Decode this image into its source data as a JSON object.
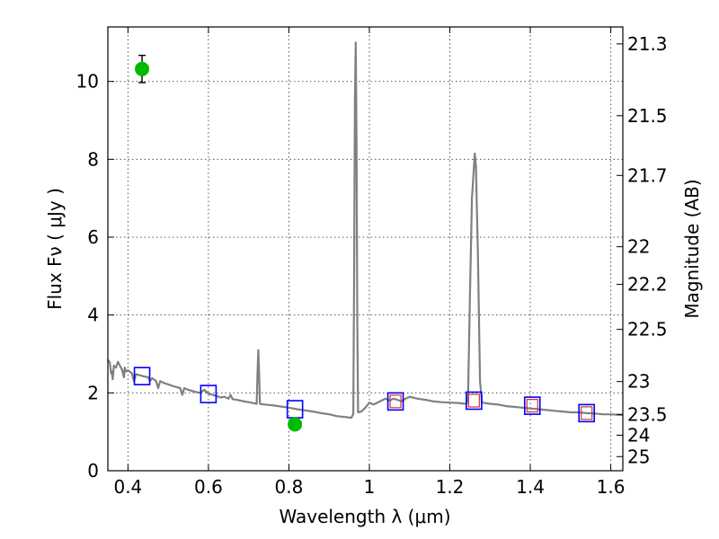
{
  "chart_data": {
    "type": "scatter",
    "xlabel": "Wavelength  λ (μm)",
    "ylabel": "Flux  Fν  ( μJy )",
    "ylabel_right": "Magnitude (AB)",
    "xlim": [
      0.35,
      1.63
    ],
    "ylim": [
      0,
      11.4
    ],
    "grid": true,
    "x_ticks": [
      {
        "value": 0.4,
        "label": "0.4"
      },
      {
        "value": 0.6,
        "label": "0.6"
      },
      {
        "value": 0.8,
        "label": "0.8"
      },
      {
        "value": 1.0,
        "label": "1"
      },
      {
        "value": 1.2,
        "label": "1.2"
      },
      {
        "value": 1.4,
        "label": "1.4"
      },
      {
        "value": 1.6,
        "label": "1.6"
      }
    ],
    "y_ticks": [
      {
        "value": 0,
        "label": "0"
      },
      {
        "value": 2,
        "label": "2"
      },
      {
        "value": 4,
        "label": "4"
      },
      {
        "value": 6,
        "label": "6"
      },
      {
        "value": 8,
        "label": "8"
      },
      {
        "value": 10,
        "label": "10"
      }
    ],
    "right_ticks": [
      {
        "mag": 21.3,
        "label": "21.3"
      },
      {
        "mag": 21.5,
        "label": "21.5"
      },
      {
        "mag": 21.7,
        "label": "21.7"
      },
      {
        "mag": 22.0,
        "label": "22"
      },
      {
        "mag": 22.2,
        "label": "22.2"
      },
      {
        "mag": 22.5,
        "label": "22.5"
      },
      {
        "mag": 23.0,
        "label": "23"
      },
      {
        "mag": 23.5,
        "label": "23.5"
      },
      {
        "mag": 24.0,
        "label": "24"
      },
      {
        "mag": 25.0,
        "label": "25"
      }
    ],
    "colors": {
      "spectrum": "#808080",
      "observed": "#00bb00",
      "model_box": "#0000ff",
      "model_box_inner": "#cc3333",
      "grid": "#555555"
    },
    "spectrum": [
      [
        0.35,
        2.85
      ],
      [
        0.355,
        2.78
      ],
      [
        0.358,
        2.5
      ],
      [
        0.36,
        2.55
      ],
      [
        0.362,
        2.35
      ],
      [
        0.365,
        2.7
      ],
      [
        0.37,
        2.65
      ],
      [
        0.375,
        2.8
      ],
      [
        0.38,
        2.7
      ],
      [
        0.385,
        2.6
      ],
      [
        0.39,
        2.4
      ],
      [
        0.392,
        2.65
      ],
      [
        0.395,
        2.55
      ],
      [
        0.4,
        2.58
      ],
      [
        0.41,
        2.5
      ],
      [
        0.415,
        2.3
      ],
      [
        0.42,
        2.48
      ],
      [
        0.43,
        2.45
      ],
      [
        0.44,
        2.42
      ],
      [
        0.45,
        2.4
      ],
      [
        0.455,
        2.3
      ],
      [
        0.46,
        2.38
      ],
      [
        0.47,
        2.3
      ],
      [
        0.475,
        2.12
      ],
      [
        0.48,
        2.3
      ],
      [
        0.49,
        2.25
      ],
      [
        0.5,
        2.22
      ],
      [
        0.51,
        2.18
      ],
      [
        0.52,
        2.15
      ],
      [
        0.53,
        2.12
      ],
      [
        0.535,
        1.95
      ],
      [
        0.54,
        2.12
      ],
      [
        0.55,
        2.08
      ],
      [
        0.56,
        2.05
      ],
      [
        0.57,
        2.02
      ],
      [
        0.58,
        2.0
      ],
      [
        0.59,
        2.08
      ],
      [
        0.6,
        1.98
      ],
      [
        0.61,
        1.95
      ],
      [
        0.62,
        1.92
      ],
      [
        0.63,
        1.88
      ],
      [
        0.64,
        1.9
      ],
      [
        0.65,
        1.85
      ],
      [
        0.655,
        1.95
      ],
      [
        0.66,
        1.84
      ],
      [
        0.67,
        1.82
      ],
      [
        0.68,
        1.8
      ],
      [
        0.69,
        1.78
      ],
      [
        0.7,
        1.76
      ],
      [
        0.71,
        1.74
      ],
      [
        0.72,
        1.72
      ],
      [
        0.722,
        2.5
      ],
      [
        0.724,
        3.1
      ],
      [
        0.726,
        2.5
      ],
      [
        0.728,
        1.72
      ],
      [
        0.74,
        1.7
      ],
      [
        0.76,
        1.68
      ],
      [
        0.78,
        1.65
      ],
      [
        0.8,
        1.62
      ],
      [
        0.82,
        1.58
      ],
      [
        0.84,
        1.55
      ],
      [
        0.86,
        1.52
      ],
      [
        0.88,
        1.48
      ],
      [
        0.9,
        1.45
      ],
      [
        0.92,
        1.4
      ],
      [
        0.94,
        1.38
      ],
      [
        0.955,
        1.36
      ],
      [
        0.96,
        1.45
      ],
      [
        0.962,
        5.0
      ],
      [
        0.964,
        9.5
      ],
      [
        0.966,
        11.0
      ],
      [
        0.968,
        8.5
      ],
      [
        0.97,
        4.0
      ],
      [
        0.972,
        1.5
      ],
      [
        0.98,
        1.52
      ],
      [
        0.99,
        1.62
      ],
      [
        1.0,
        1.75
      ],
      [
        1.01,
        1.7
      ],
      [
        1.02,
        1.75
      ],
      [
        1.03,
        1.8
      ],
      [
        1.04,
        1.85
      ],
      [
        1.05,
        1.8
      ],
      [
        1.06,
        1.85
      ],
      [
        1.07,
        1.82
      ],
      [
        1.08,
        1.78
      ],
      [
        1.09,
        1.85
      ],
      [
        1.1,
        1.9
      ],
      [
        1.12,
        1.85
      ],
      [
        1.14,
        1.82
      ],
      [
        1.16,
        1.78
      ],
      [
        1.18,
        1.76
      ],
      [
        1.2,
        1.75
      ],
      [
        1.22,
        1.74
      ],
      [
        1.24,
        1.72
      ],
      [
        1.245,
        1.8
      ],
      [
        1.25,
        4.5
      ],
      [
        1.255,
        7.0
      ],
      [
        1.262,
        8.15
      ],
      [
        1.265,
        7.8
      ],
      [
        1.27,
        5.5
      ],
      [
        1.275,
        2.3
      ],
      [
        1.28,
        1.75
      ],
      [
        1.3,
        1.72
      ],
      [
        1.32,
        1.7
      ],
      [
        1.34,
        1.66
      ],
      [
        1.36,
        1.64
      ],
      [
        1.38,
        1.62
      ],
      [
        1.4,
        1.6
      ],
      [
        1.42,
        1.58
      ],
      [
        1.44,
        1.56
      ],
      [
        1.46,
        1.54
      ],
      [
        1.48,
        1.52
      ],
      [
        1.5,
        1.5
      ],
      [
        1.52,
        1.5
      ],
      [
        1.54,
        1.48
      ],
      [
        1.56,
        1.47
      ],
      [
        1.58,
        1.45
      ],
      [
        1.6,
        1.45
      ],
      [
        1.63,
        1.43
      ]
    ],
    "observed_points": [
      {
        "x": 0.435,
        "y": 10.32,
        "err": 0.35
      },
      {
        "x": 0.815,
        "y": 1.19,
        "err": 0.07
      }
    ],
    "model_boxes": [
      {
        "x": 0.435,
        "y": 2.43,
        "inner": false
      },
      {
        "x": 0.6,
        "y": 1.97,
        "inner": false
      },
      {
        "x": 0.815,
        "y": 1.58,
        "inner": false
      },
      {
        "x": 1.065,
        "y": 1.78,
        "inner": true
      },
      {
        "x": 1.26,
        "y": 1.8,
        "inner": true
      },
      {
        "x": 1.405,
        "y": 1.67,
        "inner": true
      },
      {
        "x": 1.54,
        "y": 1.48,
        "inner": true
      }
    ]
  }
}
